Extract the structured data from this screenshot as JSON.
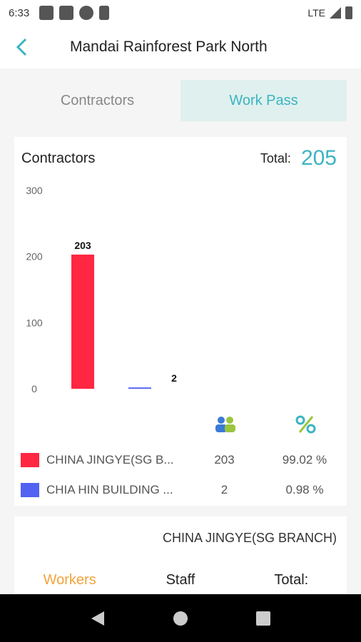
{
  "status": {
    "time": "6:33",
    "network": "LTE"
  },
  "header": {
    "title": "Mandai Rainforest Park North"
  },
  "tabs": [
    {
      "label": "Contractors",
      "active": false
    },
    {
      "label": "Work Pass",
      "active": true
    }
  ],
  "summary": {
    "label": "Contractors",
    "total_label": "Total:",
    "total_value": "205"
  },
  "chart_data": {
    "type": "bar",
    "categories": [
      "CHINA JINGYE(SG BRANCH)",
      "CHIA HIN BUILDING"
    ],
    "values": [
      203,
      2
    ],
    "colors": [
      "#ff2741",
      "#5263f2"
    ],
    "ylim": [
      0,
      300
    ],
    "yticks": [
      "0",
      "100",
      "200",
      "300"
    ],
    "data_labels": [
      "203",
      "2"
    ],
    "title": "",
    "xlabel": "",
    "ylabel": ""
  },
  "legend": [
    {
      "name": "CHINA JINGYE(SG B...",
      "count": "203",
      "percent": "99.02 %",
      "color": "#ff2741"
    },
    {
      "name": "CHIA HIN BUILDING ...",
      "count": "2",
      "percent": "0.98 %",
      "color": "#5263f2"
    }
  ],
  "detail": {
    "name": "CHINA JINGYE(SG BRANCH)",
    "workers_label": "Workers",
    "staff_label": "Staff",
    "total_label": "Total:"
  }
}
